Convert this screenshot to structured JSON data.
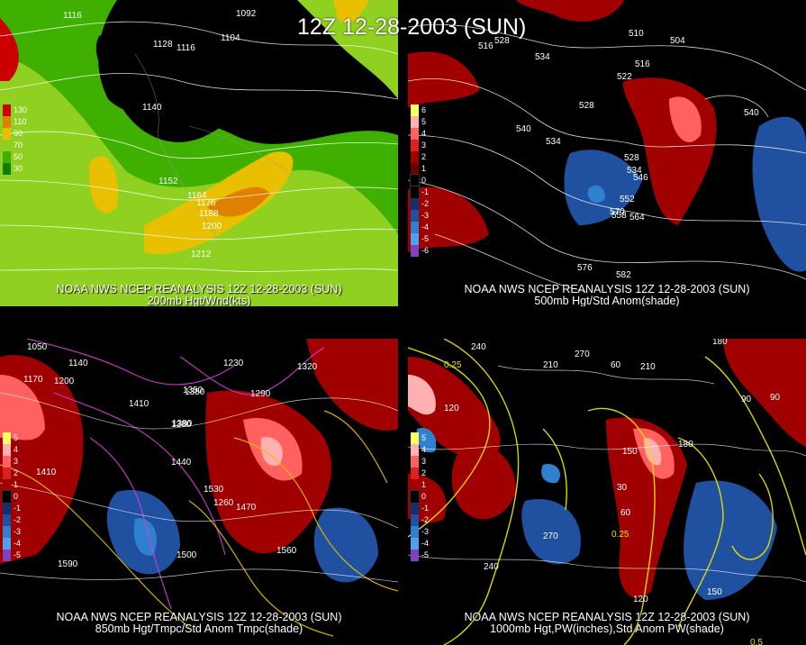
{
  "main_title": "12Z 12-28-2003 (SUN)",
  "panels": [
    {
      "id": "200mb",
      "caption_line1": "NOAA NWS NCEP REANALYSIS 12Z 12-28-2003 (SUN)",
      "caption_line2": "200mb Hgt/Wnd(kts)",
      "legend": [
        "130",
        "110",
        "90",
        "70",
        "50",
        "30"
      ],
      "legend_colors": [
        "#cc0000",
        "#e08000",
        "#e8c000",
        "#90d020",
        "#40b000",
        "#108000"
      ],
      "contour_labels": [
        "1116",
        "1092",
        "1104",
        "1128",
        "1116",
        "1140",
        "1152",
        "1164",
        "1176",
        "1188",
        "1200",
        "1212"
      ]
    },
    {
      "id": "500mb",
      "caption_line1": "NOAA NWS NCEP REANALYSIS 12Z 12-28-2003 (SUN)",
      "caption_line2": "500mb Hgt/Std Anom(shade)",
      "legend": [
        "6",
        "5",
        "4",
        "3",
        "2",
        "1",
        "0",
        "-1",
        "-2",
        "-3",
        "-4",
        "-5",
        "-6"
      ],
      "legend_colors": [
        "#ffff60",
        "#ffb0b0",
        "#ff6060",
        "#e02020",
        "#a00000",
        "#700000",
        "#000000",
        "#000000",
        "#103070",
        "#2050a0",
        "#3080d0",
        "#50a0f0",
        "#8040c0"
      ],
      "contour_labels": [
        "516",
        "528",
        "510",
        "504",
        "534",
        "516",
        "522",
        "528",
        "540",
        "534",
        "540",
        "528",
        "534",
        "546",
        "552",
        "558",
        "564",
        "570",
        "576",
        "582"
      ]
    },
    {
      "id": "850mb",
      "caption_line1": "NOAA NWS NCEP REANALYSIS 12Z 12-28-2003 (SUN)",
      "caption_line2": "850mb Hgt/Tmpc/Std Anom Tmpc(shade)",
      "legend": [
        "5",
        "4",
        "3",
        "2",
        "1",
        "0",
        "-1",
        "-2",
        "-3",
        "-4",
        "-5"
      ],
      "legend_colors": [
        "#ffff60",
        "#ffb0b0",
        "#ff6060",
        "#e02020",
        "#a00000",
        "#000000",
        "#103070",
        "#2050a0",
        "#3080d0",
        "#50a0f0",
        "#8040c0"
      ],
      "contour_labels": [
        "1050",
        "1140",
        "1170",
        "1200",
        "1410",
        "1380",
        "1350",
        "1320",
        "1290",
        "1260",
        "1230",
        "1470",
        "1500",
        "1530",
        "1560",
        "1590",
        "1410",
        "1380",
        "1440",
        "1350"
      ]
    },
    {
      "id": "1000mb",
      "caption_line1": "NOAA NWS NCEP REANALYSIS 12Z 12-28-2003 (SUN)",
      "caption_line2": "1000mb Hgt,PW(inches),Std Anom PW(shade)",
      "legend": [
        "5",
        "4",
        "3",
        "2",
        "1",
        "0",
        "-1",
        "-2",
        "-3",
        "-4",
        "-5"
      ],
      "legend_colors": [
        "#ffff60",
        "#ffb0b0",
        "#ff6060",
        "#e02020",
        "#a00000",
        "#000000",
        "#103070",
        "#2050a0",
        "#3080d0",
        "#50a0f0",
        "#8040c0"
      ],
      "contour_labels": [
        "180",
        "240",
        "210",
        "270",
        "60",
        "120",
        "90",
        "150",
        "30",
        "0.25",
        "0.25",
        "0.5",
        "210",
        "240",
        "270",
        "180",
        "150",
        "120",
        "90",
        "60"
      ]
    }
  ]
}
